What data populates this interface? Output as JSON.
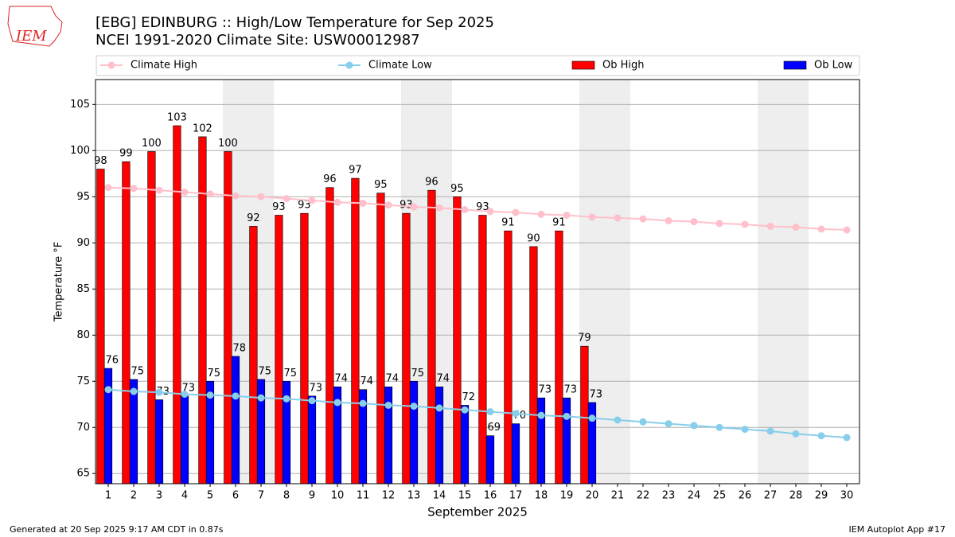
{
  "chart_data": {
    "type": "bar",
    "title": "[EBG] EDINBURG :: High/Low Temperature for Sep 2025",
    "subtitle": "NCEI 1991-2020 Climate Site: USW00012987",
    "xlabel": "September 2025",
    "ylabel": "Temperature °F",
    "footer_left": "Generated at 20 Sep 2025 9:17 AM CDT in 0.87s",
    "footer_right": "IEM Autoplot App #17",
    "logo": "IEM",
    "x": [
      1,
      2,
      3,
      4,
      5,
      6,
      7,
      8,
      9,
      10,
      11,
      12,
      13,
      14,
      15,
      16,
      17,
      18,
      19,
      20,
      21,
      22,
      23,
      24,
      25,
      26,
      27,
      28,
      29,
      30
    ],
    "xlim": [
      0.5,
      30.5
    ],
    "xticks": [
      1,
      2,
      3,
      4,
      5,
      6,
      7,
      8,
      9,
      10,
      11,
      12,
      13,
      14,
      15,
      16,
      17,
      18,
      19,
      20,
      21,
      22,
      23,
      24,
      25,
      26,
      27,
      28,
      29,
      30
    ],
    "ylim": [
      63.9,
      107.7
    ],
    "yticks": [
      65,
      70,
      75,
      80,
      85,
      90,
      95,
      100,
      105
    ],
    "grid": true,
    "weekend_bands": [
      [
        5.5,
        7.5
      ],
      [
        12.5,
        14.5
      ],
      [
        19.5,
        21.5
      ],
      [
        26.5,
        28.5
      ]
    ],
    "series": [
      {
        "name": "Climate High",
        "kind": "line",
        "color": "#ffc0cb",
        "values": [
          96.0,
          95.9,
          95.7,
          95.5,
          95.3,
          95.1,
          95.0,
          94.8,
          94.6,
          94.4,
          94.3,
          94.1,
          93.9,
          93.8,
          93.6,
          93.4,
          93.3,
          93.1,
          93.0,
          92.8,
          92.7,
          92.6,
          92.4,
          92.3,
          92.1,
          92.0,
          91.8,
          91.7,
          91.5,
          91.4
        ]
      },
      {
        "name": "Climate Low",
        "kind": "line",
        "color": "#87ceeb",
        "values": [
          74.1,
          73.9,
          73.8,
          73.6,
          73.5,
          73.4,
          73.2,
          73.1,
          72.9,
          72.7,
          72.6,
          72.4,
          72.3,
          72.1,
          71.9,
          71.7,
          71.5,
          71.3,
          71.2,
          71.0,
          70.8,
          70.6,
          70.4,
          70.2,
          70.0,
          69.8,
          69.6,
          69.3,
          69.1,
          68.9
        ]
      },
      {
        "name": "Ob High",
        "kind": "bar",
        "color": "#ff0000",
        "values": [
          98.0,
          98.8,
          99.9,
          102.7,
          101.5,
          99.9,
          91.8,
          93.0,
          93.2,
          96.0,
          97.0,
          95.4,
          93.2,
          95.7,
          95.0,
          93.0,
          91.3,
          89.6,
          91.3,
          78.8,
          null,
          null,
          null,
          null,
          null,
          null,
          null,
          null,
          null,
          null
        ],
        "value_labels": [
          "98",
          "99",
          "100",
          "103",
          "102",
          "100",
          "92",
          "93",
          "93",
          "96",
          "97",
          "95",
          "93",
          "96",
          "95",
          "93",
          "91",
          "90",
          "91",
          "79",
          null,
          null,
          null,
          null,
          null,
          null,
          null,
          null,
          null,
          null
        ]
      },
      {
        "name": "Ob Low",
        "kind": "bar",
        "color": "#0000ff",
        "values": [
          76.4,
          75.2,
          73.0,
          73.4,
          75.0,
          77.7,
          75.2,
          75.0,
          73.4,
          74.4,
          74.1,
          74.4,
          75.0,
          74.4,
          72.4,
          69.1,
          70.4,
          73.2,
          73.2,
          72.7,
          null,
          null,
          null,
          null,
          null,
          null,
          null,
          null,
          null,
          null
        ],
        "value_labels": [
          "76",
          "75",
          "73",
          "73",
          "75",
          "78",
          "75",
          "75",
          "73",
          "74",
          "74",
          "74",
          "75",
          "74",
          "72",
          "69",
          "70",
          "73",
          "73",
          "73",
          null,
          null,
          null,
          null,
          null,
          null,
          null,
          null,
          null,
          null
        ]
      }
    ]
  }
}
